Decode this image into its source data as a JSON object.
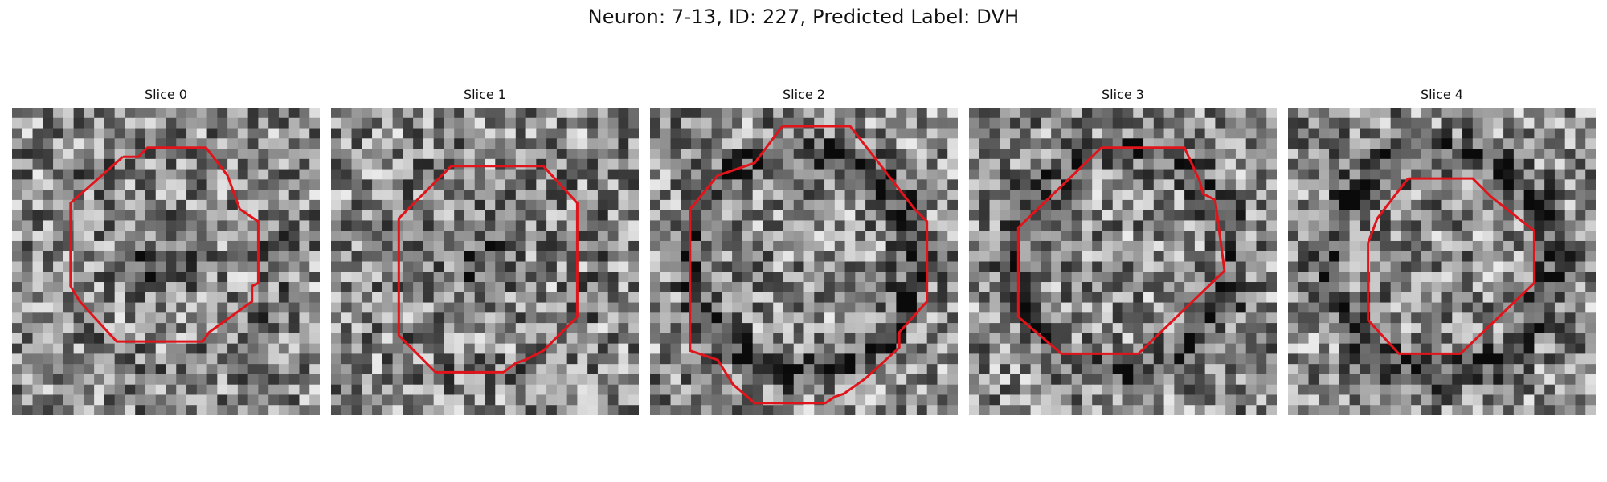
{
  "figure": {
    "title": "Neuron: 7-13, ID: 227, Predicted Label: DVH",
    "outline_color": "#e0141b"
  },
  "panels": [
    {
      "label": "Slice 0",
      "seed": 11,
      "ring": 0.25,
      "dark_center": true,
      "outline": [
        [
          0.36,
          0.16
        ],
        [
          0.41,
          0.16
        ],
        [
          0.44,
          0.13
        ],
        [
          0.63,
          0.13
        ],
        [
          0.7,
          0.22
        ],
        [
          0.74,
          0.33
        ],
        [
          0.8,
          0.37
        ],
        [
          0.8,
          0.57
        ],
        [
          0.78,
          0.58
        ],
        [
          0.78,
          0.63
        ],
        [
          0.64,
          0.73
        ],
        [
          0.62,
          0.76
        ],
        [
          0.34,
          0.76
        ],
        [
          0.22,
          0.63
        ],
        [
          0.19,
          0.58
        ],
        [
          0.19,
          0.31
        ],
        [
          0.36,
          0.16
        ]
      ]
    },
    {
      "label": "Slice 1",
      "seed": 23,
      "ring": 0.15,
      "dark_center": true,
      "outline": [
        [
          0.39,
          0.19
        ],
        [
          0.69,
          0.19
        ],
        [
          0.8,
          0.31
        ],
        [
          0.8,
          0.68
        ],
        [
          0.69,
          0.79
        ],
        [
          0.63,
          0.82
        ],
        [
          0.6,
          0.83
        ],
        [
          0.56,
          0.86
        ],
        [
          0.34,
          0.86
        ],
        [
          0.23,
          0.75
        ],
        [
          0.22,
          0.74
        ],
        [
          0.22,
          0.36
        ],
        [
          0.39,
          0.19
        ]
      ]
    },
    {
      "label": "Slice 2",
      "seed": 37,
      "ring": 0.9,
      "dark_center": false,
      "outline": [
        [
          0.43,
          0.06
        ],
        [
          0.65,
          0.06
        ],
        [
          0.86,
          0.33
        ],
        [
          0.9,
          0.37
        ],
        [
          0.9,
          0.63
        ],
        [
          0.81,
          0.73
        ],
        [
          0.81,
          0.78
        ],
        [
          0.7,
          0.88
        ],
        [
          0.63,
          0.93
        ],
        [
          0.6,
          0.94
        ],
        [
          0.57,
          0.96
        ],
        [
          0.34,
          0.96
        ],
        [
          0.27,
          0.9
        ],
        [
          0.22,
          0.82
        ],
        [
          0.13,
          0.79
        ],
        [
          0.13,
          0.33
        ],
        [
          0.22,
          0.22
        ],
        [
          0.34,
          0.18
        ],
        [
          0.43,
          0.06
        ]
      ]
    },
    {
      "label": "Slice 3",
      "seed": 53,
      "ring": 0.75,
      "dark_center": false,
      "outline": [
        [
          0.43,
          0.13
        ],
        [
          0.7,
          0.13
        ],
        [
          0.75,
          0.24
        ],
        [
          0.76,
          0.28
        ],
        [
          0.8,
          0.3
        ],
        [
          0.83,
          0.53
        ],
        [
          0.55,
          0.8
        ],
        [
          0.3,
          0.8
        ],
        [
          0.16,
          0.68
        ],
        [
          0.16,
          0.39
        ],
        [
          0.43,
          0.13
        ]
      ]
    },
    {
      "label": "Slice 4",
      "seed": 71,
      "ring": 0.9,
      "dark_center": false,
      "outline": [
        [
          0.39,
          0.23
        ],
        [
          0.6,
          0.23
        ],
        [
          0.66,
          0.29
        ],
        [
          0.8,
          0.4
        ],
        [
          0.8,
          0.57
        ],
        [
          0.56,
          0.8
        ],
        [
          0.36,
          0.8
        ],
        [
          0.26,
          0.69
        ],
        [
          0.26,
          0.44
        ],
        [
          0.29,
          0.36
        ],
        [
          0.39,
          0.23
        ]
      ]
    }
  ]
}
